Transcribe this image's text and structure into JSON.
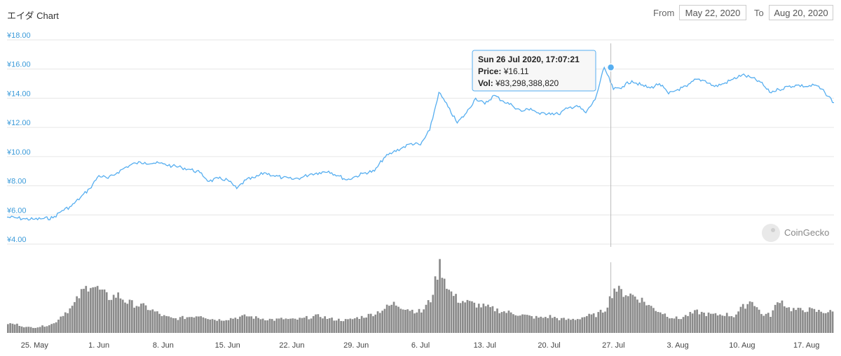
{
  "title": "エイダ Chart",
  "range": {
    "from_label": "From",
    "from_value": "May 22, 2020",
    "to_label": "To",
    "to_value": "Aug 20, 2020"
  },
  "tooltip": {
    "date": "Sun 26 Jul 2020, 17:07:21",
    "price_label": "Price:",
    "price_value": "¥16.11",
    "vol_label": "Vol:",
    "vol_value": "¥83,298,388,820"
  },
  "logo": {
    "text": "CoinGecko",
    "icon": "gecko-icon"
  },
  "colors": {
    "line": "#56aef0",
    "volume": "#8a8a8a",
    "grid": "#e6e6e6",
    "ytick": "#3a9ad9",
    "tooltip_border": "#56aef0"
  },
  "chart_data": {
    "type": "line",
    "x_start": "2020-05-22",
    "x_end": "2020-08-20",
    "y_tick_labels": [
      "¥4.00",
      "¥6.00",
      "¥8.00",
      "¥10.00",
      "¥12.00",
      "¥14.00",
      "¥16.00",
      "¥18.00"
    ],
    "ylim": [
      4,
      18
    ],
    "x_tick_labels": [
      {
        "date": "2020-05-25",
        "label": "25. May"
      },
      {
        "date": "2020-06-01",
        "label": "1. Jun"
      },
      {
        "date": "2020-06-08",
        "label": "8. Jun"
      },
      {
        "date": "2020-06-15",
        "label": "15. Jun"
      },
      {
        "date": "2020-06-22",
        "label": "22. Jun"
      },
      {
        "date": "2020-06-29",
        "label": "29. Jun"
      },
      {
        "date": "2020-07-06",
        "label": "6. Jul"
      },
      {
        "date": "2020-07-13",
        "label": "13. Jul"
      },
      {
        "date": "2020-07-20",
        "label": "20. Jul"
      },
      {
        "date": "2020-07-27",
        "label": "27. Jul"
      },
      {
        "date": "2020-08-03",
        "label": "3. Aug"
      },
      {
        "date": "2020-08-10",
        "label": "10. Aug"
      },
      {
        "date": "2020-08-17",
        "label": "17. Aug"
      }
    ],
    "grid": true,
    "highlight": {
      "date": "2020-07-26T17:07:21",
      "price": 16.11
    },
    "price_series": [
      [
        "2020-05-22",
        5.85
      ],
      [
        "2020-05-23",
        5.8
      ],
      [
        "2020-05-24",
        5.72
      ],
      [
        "2020-05-25",
        5.7
      ],
      [
        "2020-05-26",
        5.75
      ],
      [
        "2020-05-27",
        5.8
      ],
      [
        "2020-05-28",
        6.3
      ],
      [
        "2020-05-29",
        6.6
      ],
      [
        "2020-05-30",
        7.2
      ],
      [
        "2020-05-31",
        7.8
      ],
      [
        "2020-06-01",
        8.7
      ],
      [
        "2020-06-02",
        8.5
      ],
      [
        "2020-06-03",
        8.9
      ],
      [
        "2020-06-04",
        9.3
      ],
      [
        "2020-06-05",
        9.55
      ],
      [
        "2020-06-06",
        9.6
      ],
      [
        "2020-06-07",
        9.55
      ],
      [
        "2020-06-08",
        9.5
      ],
      [
        "2020-06-09",
        9.35
      ],
      [
        "2020-06-10",
        9.25
      ],
      [
        "2020-06-11",
        9.1
      ],
      [
        "2020-06-12",
        8.9
      ],
      [
        "2020-06-13",
        8.3
      ],
      [
        "2020-06-14",
        8.5
      ],
      [
        "2020-06-15",
        8.4
      ],
      [
        "2020-06-16",
        7.8
      ],
      [
        "2020-06-17",
        8.4
      ],
      [
        "2020-06-18",
        8.55
      ],
      [
        "2020-06-19",
        8.9
      ],
      [
        "2020-06-20",
        8.7
      ],
      [
        "2020-06-21",
        8.55
      ],
      [
        "2020-06-22",
        8.45
      ],
      [
        "2020-06-23",
        8.55
      ],
      [
        "2020-06-24",
        8.8
      ],
      [
        "2020-06-25",
        8.9
      ],
      [
        "2020-06-26",
        9.0
      ],
      [
        "2020-06-27",
        8.7
      ],
      [
        "2020-06-28",
        8.4
      ],
      [
        "2020-06-29",
        8.65
      ],
      [
        "2020-06-30",
        8.9
      ],
      [
        "2020-07-01",
        9.0
      ],
      [
        "2020-07-02",
        9.9
      ],
      [
        "2020-07-03",
        10.3
      ],
      [
        "2020-07-04",
        10.6
      ],
      [
        "2020-07-05",
        10.9
      ],
      [
        "2020-07-06",
        10.8
      ],
      [
        "2020-07-07",
        11.8
      ],
      [
        "2020-07-08",
        14.4
      ],
      [
        "2020-07-09",
        13.4
      ],
      [
        "2020-07-10",
        12.3
      ],
      [
        "2020-07-11",
        13.0
      ],
      [
        "2020-07-12",
        14.0
      ],
      [
        "2020-07-13",
        13.6
      ],
      [
        "2020-07-14",
        14.2
      ],
      [
        "2020-07-15",
        13.8
      ],
      [
        "2020-07-16",
        13.5
      ],
      [
        "2020-07-17",
        13.1
      ],
      [
        "2020-07-18",
        13.3
      ],
      [
        "2020-07-19",
        12.9
      ],
      [
        "2020-07-20",
        13.0
      ],
      [
        "2020-07-21",
        12.9
      ],
      [
        "2020-07-22",
        13.3
      ],
      [
        "2020-07-23",
        13.5
      ],
      [
        "2020-07-24",
        13.0
      ],
      [
        "2020-07-25",
        13.9
      ],
      [
        "2020-07-26",
        16.11
      ],
      [
        "2020-07-27",
        14.6
      ],
      [
        "2020-07-28",
        14.8
      ],
      [
        "2020-07-29",
        15.2
      ],
      [
        "2020-07-30",
        14.9
      ],
      [
        "2020-07-31",
        14.7
      ],
      [
        "2020-08-01",
        15.0
      ],
      [
        "2020-08-02",
        14.3
      ],
      [
        "2020-08-03",
        14.6
      ],
      [
        "2020-08-04",
        14.8
      ],
      [
        "2020-08-05",
        15.3
      ],
      [
        "2020-08-06",
        15.2
      ],
      [
        "2020-08-07",
        14.8
      ],
      [
        "2020-08-08",
        15.0
      ],
      [
        "2020-08-09",
        15.3
      ],
      [
        "2020-08-10",
        15.6
      ],
      [
        "2020-08-11",
        15.4
      ],
      [
        "2020-08-12",
        15.1
      ],
      [
        "2020-08-13",
        14.4
      ],
      [
        "2020-08-14",
        14.6
      ],
      [
        "2020-08-15",
        14.8
      ],
      [
        "2020-08-16",
        14.9
      ],
      [
        "2020-08-17",
        14.8
      ],
      [
        "2020-08-18",
        14.9
      ],
      [
        "2020-08-19",
        14.4
      ],
      [
        "2020-08-20",
        13.7
      ]
    ],
    "volume_series": [
      0.2,
      0.18,
      0.12,
      0.12,
      0.15,
      0.2,
      0.4,
      0.55,
      0.85,
      1.05,
      0.9,
      0.75,
      0.8,
      0.65,
      0.6,
      0.55,
      0.45,
      0.35,
      0.3,
      0.32,
      0.35,
      0.38,
      0.3,
      0.28,
      0.3,
      0.33,
      0.36,
      0.32,
      0.3,
      0.28,
      0.3,
      0.28,
      0.3,
      0.34,
      0.36,
      0.3,
      0.28,
      0.27,
      0.32,
      0.36,
      0.42,
      0.52,
      0.62,
      0.55,
      0.48,
      0.45,
      0.7,
      1.45,
      0.9,
      0.7,
      0.65,
      0.6,
      0.55,
      0.5,
      0.45,
      0.42,
      0.38,
      0.34,
      0.32,
      0.35,
      0.3,
      0.28,
      0.3,
      0.36,
      0.38,
      0.5,
      0.95,
      0.85,
      0.8,
      0.7,
      0.55,
      0.45,
      0.35,
      0.3,
      0.38,
      0.45,
      0.4,
      0.38,
      0.4,
      0.36,
      0.55,
      0.7,
      0.4,
      0.38,
      0.72,
      0.52,
      0.48,
      0.5,
      0.46,
      0.45,
      0.44
    ]
  }
}
